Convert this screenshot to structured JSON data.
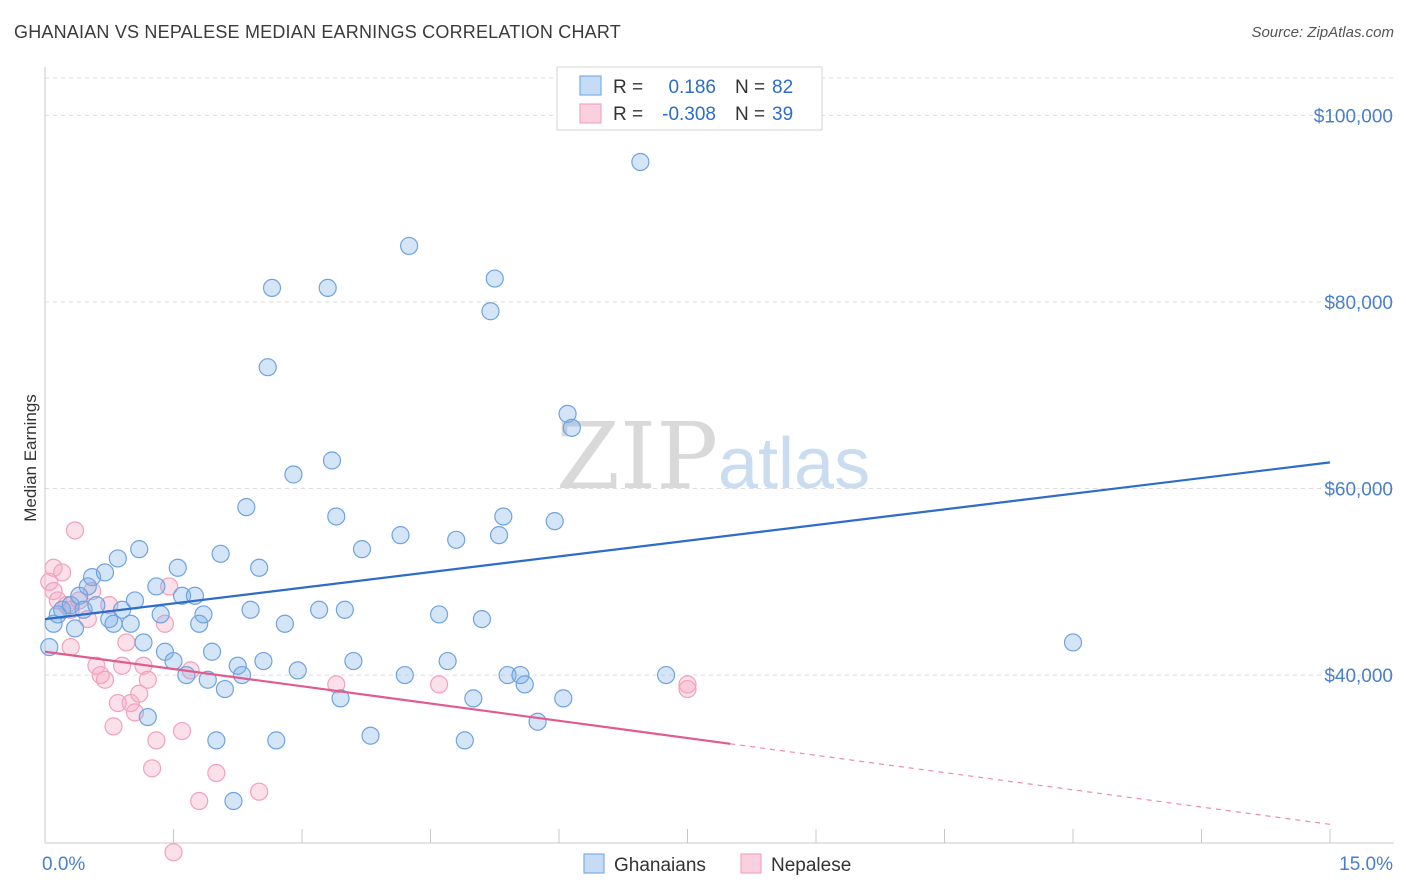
{
  "title": "GHANAIAN VS NEPALESE MEDIAN EARNINGS CORRELATION CHART",
  "source": "Source: ZipAtlas.com",
  "watermark": {
    "zip": "ZIP",
    "atlas": "atlas"
  },
  "legend": {
    "rows": [
      {
        "r_label": "R =",
        "r_value": "0.186",
        "n_label": "N =",
        "n_value": "82"
      },
      {
        "r_label": "R =",
        "r_value": "-0.308",
        "n_label": "N =",
        "n_value": "39"
      }
    ]
  },
  "bottom_legend": [
    "Ghanaians",
    "Nepalese"
  ],
  "chart_data": {
    "type": "scatter",
    "title": "GHANAIAN VS NEPALESE MEDIAN EARNINGS CORRELATION CHART",
    "xlabel": "",
    "ylabel": "Median Earnings",
    "xlim": [
      0,
      15
    ],
    "ylim": [
      22000,
      104000
    ],
    "x_tick_labels": [
      "0.0%",
      "15.0%"
    ],
    "y_ticks": [
      40000,
      60000,
      80000,
      100000
    ],
    "y_tick_labels": [
      "$40,000",
      "$60,000",
      "$80,000",
      "$100,000"
    ],
    "grid": true,
    "legend_position": "top-center",
    "colors": {
      "Ghanaians": "#7aaee8",
      "Nepalese": "#f4a6c0",
      "Ghanaians_line": "#2d6cc8",
      "Nepalese_line": "#e05c8f"
    },
    "series": [
      {
        "name": "Ghanaians",
        "r": 0.186,
        "n": 82,
        "trend": {
          "x0": 0,
          "y0": 46000,
          "x1": 15,
          "y1": 62800,
          "dashed_from": null
        },
        "points": [
          [
            0.1,
            45500
          ],
          [
            0.15,
            46500
          ],
          [
            0.2,
            47000
          ],
          [
            0.3,
            47500
          ],
          [
            0.35,
            45000
          ],
          [
            0.4,
            48500
          ],
          [
            0.45,
            47000
          ],
          [
            0.5,
            49500
          ],
          [
            0.55,
            50500
          ],
          [
            0.6,
            47500
          ],
          [
            0.7,
            51000
          ],
          [
            0.75,
            46000
          ],
          [
            0.8,
            45500
          ],
          [
            0.85,
            52500
          ],
          [
            0.9,
            47000
          ],
          [
            1.0,
            45500
          ],
          [
            1.05,
            48000
          ],
          [
            1.1,
            53500
          ],
          [
            1.15,
            43500
          ],
          [
            1.2,
            35500
          ],
          [
            1.3,
            49500
          ],
          [
            1.35,
            46500
          ],
          [
            1.4,
            42500
          ],
          [
            1.5,
            41500
          ],
          [
            1.55,
            51500
          ],
          [
            1.6,
            48500
          ],
          [
            1.65,
            40000
          ],
          [
            1.75,
            48500
          ],
          [
            1.8,
            45500
          ],
          [
            1.85,
            46500
          ],
          [
            1.9,
            39500
          ],
          [
            1.95,
            42500
          ],
          [
            2.0,
            33000
          ],
          [
            2.05,
            53000
          ],
          [
            2.1,
            38500
          ],
          [
            2.2,
            26500
          ],
          [
            2.25,
            41000
          ],
          [
            2.3,
            40000
          ],
          [
            2.35,
            58000
          ],
          [
            2.4,
            47000
          ],
          [
            2.5,
            51500
          ],
          [
            2.55,
            41500
          ],
          [
            2.6,
            73000
          ],
          [
            2.65,
            81500
          ],
          [
            2.7,
            33000
          ],
          [
            2.8,
            45500
          ],
          [
            2.9,
            61500
          ],
          [
            2.95,
            40500
          ],
          [
            3.2,
            47000
          ],
          [
            3.3,
            81500
          ],
          [
            3.35,
            63000
          ],
          [
            3.4,
            57000
          ],
          [
            3.45,
            37500
          ],
          [
            3.5,
            47000
          ],
          [
            3.6,
            41500
          ],
          [
            3.7,
            53500
          ],
          [
            3.8,
            33500
          ],
          [
            4.15,
            55000
          ],
          [
            4.2,
            40000
          ],
          [
            4.25,
            86000
          ],
          [
            4.6,
            46500
          ],
          [
            4.7,
            41500
          ],
          [
            4.8,
            54500
          ],
          [
            4.9,
            33000
          ],
          [
            5.0,
            37500
          ],
          [
            5.1,
            46000
          ],
          [
            5.2,
            79000
          ],
          [
            5.25,
            82500
          ],
          [
            5.3,
            55000
          ],
          [
            5.35,
            57000
          ],
          [
            5.4,
            40000
          ],
          [
            5.55,
            40000
          ],
          [
            5.6,
            39000
          ],
          [
            5.75,
            35000
          ],
          [
            5.95,
            56500
          ],
          [
            6.05,
            37500
          ],
          [
            6.1,
            68000
          ],
          [
            6.15,
            66500
          ],
          [
            6.95,
            95000
          ],
          [
            7.25,
            40000
          ],
          [
            12.0,
            43500
          ],
          [
            0.05,
            43000
          ]
        ]
      },
      {
        "name": "Nepalese",
        "r": -0.308,
        "n": 39,
        "trend": {
          "x0": 0,
          "y0": 42500,
          "x1": 15,
          "y1": 24000,
          "dashed_from": 8.0
        },
        "points": [
          [
            0.05,
            50000
          ],
          [
            0.1,
            49000
          ],
          [
            0.15,
            48000
          ],
          [
            0.2,
            51000
          ],
          [
            0.3,
            47000
          ],
          [
            0.3,
            43000
          ],
          [
            0.35,
            55500
          ],
          [
            0.4,
            48000
          ],
          [
            0.5,
            46000
          ],
          [
            0.55,
            49000
          ],
          [
            0.6,
            41000
          ],
          [
            0.65,
            40000
          ],
          [
            0.7,
            39500
          ],
          [
            0.75,
            47500
          ],
          [
            0.8,
            34500
          ],
          [
            0.85,
            37000
          ],
          [
            0.9,
            41000
          ],
          [
            0.95,
            43500
          ],
          [
            1.0,
            37000
          ],
          [
            1.05,
            36000
          ],
          [
            1.1,
            38000
          ],
          [
            1.15,
            41000
          ],
          [
            1.2,
            39500
          ],
          [
            1.25,
            30000
          ],
          [
            1.3,
            33000
          ],
          [
            1.4,
            45500
          ],
          [
            1.45,
            49500
          ],
          [
            1.5,
            21000
          ],
          [
            1.6,
            34000
          ],
          [
            1.7,
            40500
          ],
          [
            1.8,
            26500
          ],
          [
            2.0,
            29500
          ],
          [
            2.5,
            27500
          ],
          [
            3.4,
            39000
          ],
          [
            4.6,
            39000
          ],
          [
            7.5,
            39000
          ],
          [
            7.5,
            38500
          ],
          [
            0.25,
            47500
          ],
          [
            0.1,
            51500
          ]
        ]
      }
    ]
  }
}
